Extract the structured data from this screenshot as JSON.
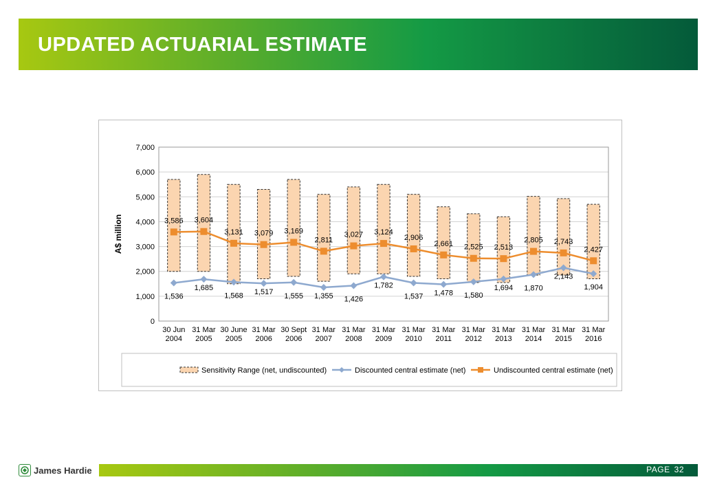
{
  "header": {
    "title": "UPDATED ACTUARIAL ESTIMATE"
  },
  "footer": {
    "page_label": "PAGE",
    "page_number": "32",
    "logo_text": "James Hardie"
  },
  "colors": {
    "range_fill": "#fbd5b0",
    "range_stroke": "#333333",
    "discounted": "#8ea9cf",
    "undiscounted": "#ed8d2e"
  },
  "chart_data": {
    "type": "line",
    "ylabel": "A$ million",
    "ylim": [
      0,
      7000
    ],
    "yticks": [
      "0",
      "1,000",
      "2,000",
      "3,000",
      "4,000",
      "5,000",
      "6,000",
      "7,000"
    ],
    "grid": true,
    "legend_position": "bottom",
    "categories": [
      [
        "30 Jun",
        "2004"
      ],
      [
        "31 Mar",
        "2005"
      ],
      [
        "30 June",
        "2005"
      ],
      [
        "31 Mar",
        "2006"
      ],
      [
        "30 Sept",
        "2006"
      ],
      [
        "31 Mar",
        "2007"
      ],
      [
        "31 Mar",
        "2008"
      ],
      [
        "31 Mar",
        "2009"
      ],
      [
        "31 Mar",
        "2010"
      ],
      [
        "31 Mar",
        "2011"
      ],
      [
        "31 Mar",
        "2012"
      ],
      [
        "31 Mar",
        "2013"
      ],
      [
        "31 Mar",
        "2014"
      ],
      [
        "31 Mar",
        "2015"
      ],
      [
        "31 Mar",
        "2016"
      ]
    ],
    "range": {
      "name": "Sensitivity Range (net, undiscounted)",
      "low": [
        2000,
        2000,
        1500,
        1700,
        1800,
        1600,
        1900,
        1900,
        1800,
        1700,
        1550,
        1550,
        1850,
        1850,
        1700
      ],
      "high": [
        5700,
        5900,
        5500,
        5300,
        5700,
        5100,
        5400,
        5500,
        5100,
        4600,
        4320,
        4200,
        5020,
        4930,
        4700
      ]
    },
    "series": [
      {
        "name": "Discounted central estimate (net)",
        "values": [
          1536,
          1685,
          1568,
          1517,
          1555,
          1355,
          1426,
          1782,
          1537,
          1478,
          1580,
          1694,
          1870,
          2143,
          1904
        ],
        "labels": [
          "1,536",
          "1,685",
          "1,568",
          "1,517",
          "1,555",
          "1,355",
          "1,426",
          "1,782",
          "1,537",
          "1,478",
          "1,580",
          "1,694",
          "1,870",
          "2,143",
          "1,904"
        ]
      },
      {
        "name": "Undiscounted central estimate (net)",
        "values": [
          3586,
          3604,
          3131,
          3079,
          3169,
          2811,
          3027,
          3124,
          2906,
          2661,
          2525,
          2513,
          2805,
          2743,
          2427
        ],
        "labels": [
          "3,586",
          "3,604",
          "3,131",
          "3,079",
          "3,169",
          "2,811",
          "3,027",
          "3,124",
          "2,906",
          "2,661",
          "2,525",
          "2,513",
          "2,805",
          "2,743",
          "2,427"
        ]
      }
    ]
  }
}
